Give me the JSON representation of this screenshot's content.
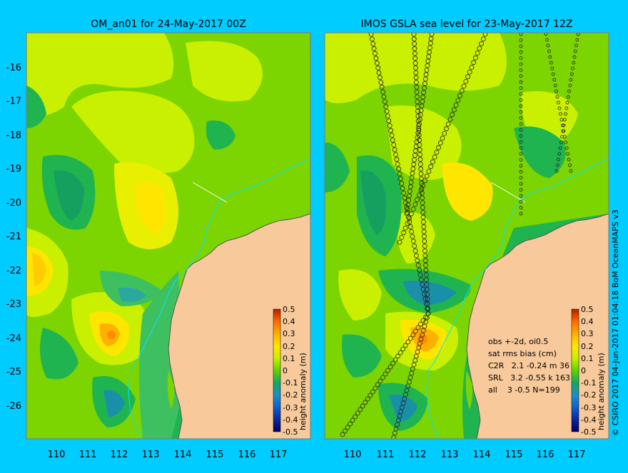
{
  "left_panel": {
    "title": "OM_an01 for 24-May-2017 00Z"
  },
  "right_panel": {
    "title": "IMOS GSLA sea level  for 23-May-2017 12Z",
    "stats": [
      "obs +-2d, oi0.5",
      "sat rms bias (cm)",
      "C2R   2.1 -0.24 m 36",
      "SRL   3.2 -0.55 k 163",
      "all    3 -0.5 N=199"
    ]
  },
  "axes": {
    "lat_ticks": [
      "-16",
      "-17",
      "-18",
      "-19",
      "-20",
      "-21",
      "-22",
      "-23",
      "-24",
      "-25",
      "-26"
    ],
    "lon_ticks": [
      "110",
      "111",
      "112",
      "113",
      "114",
      "115",
      "116",
      "117"
    ]
  },
  "colorbar": {
    "label": "height anomaly (m)",
    "ticks": [
      "0.5",
      "0.4",
      "0.3",
      "0.2",
      "0.1",
      "0",
      "-0.1",
      "-0.2",
      "-0.3",
      "-0.4",
      "-0.5"
    ]
  },
  "credit": "© CSIRO 2017   04-Jun-2017 01:04:18 BoM OceanMAPS v3",
  "colors": {
    "background": "#00ccff",
    "land": "#f7c99b",
    "coast": "#555555",
    "shelf_contour": "#00e5ff",
    "anomaly_high": "#ff8c00",
    "anomaly_low": "#003080"
  },
  "chart_data": {
    "type": "heatmap",
    "region": {
      "lon_range": [
        109,
        118
      ],
      "lat_range": [
        -27,
        -15
      ]
    },
    "colorscale_range": [
      -0.5,
      0.5
    ],
    "panels": [
      {
        "title": "OM_an01 for 24-May-2017 00Z"
      },
      {
        "title": "IMOS GSLA sea level  for 23-May-2017 12Z"
      }
    ]
  }
}
